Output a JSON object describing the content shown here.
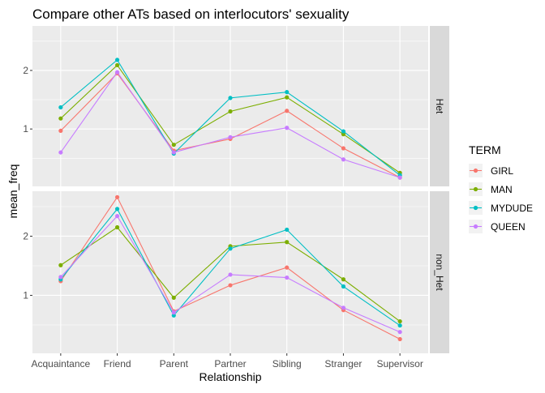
{
  "chart_data": {
    "type": "line",
    "title": "Compare other ATs based on interlocutors' sexuality",
    "xlabel": "Relationship",
    "ylabel": "mean_freq",
    "categories": [
      "Acquaintance",
      "Friend",
      "Parent",
      "Partner",
      "Sibling",
      "Stranger",
      "Supervisor"
    ],
    "ylim": [
      0.02,
      2.76
    ],
    "yticks": [
      1,
      2
    ],
    "grid": true,
    "legend": {
      "title": "TERM",
      "position": "right",
      "entries": [
        "GIRL",
        "MAN",
        "MYDUDE",
        "QUEEN"
      ]
    },
    "colors": {
      "GIRL": "#F8766D",
      "MAN": "#7CAE00",
      "MYDUDE": "#00BFC4",
      "QUEEN": "#C77CFF"
    },
    "panels": [
      {
        "strip": "Het",
        "series": [
          {
            "name": "GIRL",
            "values": [
              0.97,
              1.95,
              0.63,
              0.83,
              1.31,
              0.67,
              0.17
            ]
          },
          {
            "name": "MAN",
            "values": [
              1.18,
              2.09,
              0.73,
              1.3,
              1.54,
              0.91,
              0.25
            ]
          },
          {
            "name": "MYDUDE",
            "values": [
              1.37,
              2.18,
              0.58,
              1.53,
              1.63,
              0.96,
              0.21
            ]
          },
          {
            "name": "QUEEN",
            "values": [
              0.6,
              1.97,
              0.6,
              0.86,
              1.02,
              0.48,
              0.17
            ]
          }
        ]
      },
      {
        "strip": "non_Het",
        "series": [
          {
            "name": "GIRL",
            "values": [
              1.24,
              2.66,
              0.73,
              1.17,
              1.47,
              0.75,
              0.26
            ]
          },
          {
            "name": "MAN",
            "values": [
              1.51,
              2.15,
              0.96,
              1.83,
              1.9,
              1.27,
              0.56
            ]
          },
          {
            "name": "MYDUDE",
            "values": [
              1.27,
              2.46,
              0.66,
              1.79,
              2.11,
              1.15,
              0.49
            ]
          },
          {
            "name": "QUEEN",
            "values": [
              1.31,
              2.34,
              0.71,
              1.35,
              1.3,
              0.79,
              0.38
            ]
          }
        ]
      }
    ]
  }
}
